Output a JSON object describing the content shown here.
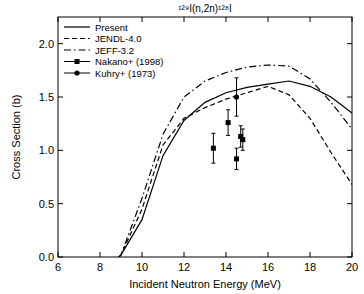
{
  "chart_data": {
    "type": "line",
    "title": "¹²⁹I(n,2n)¹²⁸I",
    "x_label": "Incident Neutron Energy (MeV)",
    "y_label": "Cross Section (b)",
    "xlim": [
      6,
      20
    ],
    "ylim": [
      0,
      2.25
    ],
    "xticks": [
      6,
      8,
      10,
      12,
      14,
      16,
      18,
      20
    ],
    "yticks": [
      {
        "value": 0,
        "label": "0.0"
      },
      {
        "value": 0.5,
        "label": "0.5"
      },
      {
        "value": 1,
        "label": "1.0"
      },
      {
        "value": 1.5,
        "label": "1.5"
      },
      {
        "value": 2,
        "label": "2.0"
      }
    ],
    "legend": "upper left",
    "series": [
      {
        "name": "Present",
        "type": "line",
        "line_style": "solid",
        "color": "#000000",
        "x": [
          8.9,
          9,
          10,
          11,
          12,
          13,
          14,
          15,
          16,
          17,
          18,
          19,
          20
        ],
        "values": [
          0,
          0.02,
          0.35,
          0.95,
          1.28,
          1.45,
          1.54,
          1.59,
          1.62,
          1.65,
          1.6,
          1.5,
          1.35
        ]
      },
      {
        "name": "JENDL-4.0",
        "type": "line",
        "line_style": "dashed",
        "color": "#000000",
        "x": [
          8.9,
          9,
          10,
          11,
          12,
          13,
          14,
          15,
          16,
          17,
          18,
          19,
          20
        ],
        "values": [
          0,
          0.02,
          0.45,
          1.05,
          1.3,
          1.4,
          1.48,
          1.54,
          1.6,
          1.52,
          1.3,
          0.98,
          0.68
        ]
      },
      {
        "name": "JEFF-3.2",
        "type": "line",
        "line_style": "dashdot",
        "color": "#000000",
        "x": [
          8.9,
          9,
          10,
          11,
          12,
          13,
          14,
          15,
          16,
          17,
          18,
          19,
          20
        ],
        "values": [
          0,
          0.02,
          0.55,
          1.15,
          1.5,
          1.65,
          1.73,
          1.78,
          1.8,
          1.79,
          1.67,
          1.45,
          1.2
        ]
      },
      {
        "name": "Nakano+ (1998)",
        "type": "scatter",
        "marker": "square",
        "color": "#000000",
        "x": [
          13.4,
          14.1,
          14.5,
          14.7,
          14.8
        ],
        "values": [
          1.02,
          1.26,
          0.92,
          1.13,
          1.1
        ],
        "errors": [
          0.14,
          0.12,
          0.1,
          0.1,
          0.1
        ]
      },
      {
        "name": "Kuhry+ (1973)",
        "type": "scatter",
        "marker": "circle",
        "color": "#000000",
        "x": [
          14.5
        ],
        "values": [
          1.5
        ],
        "errors": [
          0.18
        ]
      }
    ]
  }
}
